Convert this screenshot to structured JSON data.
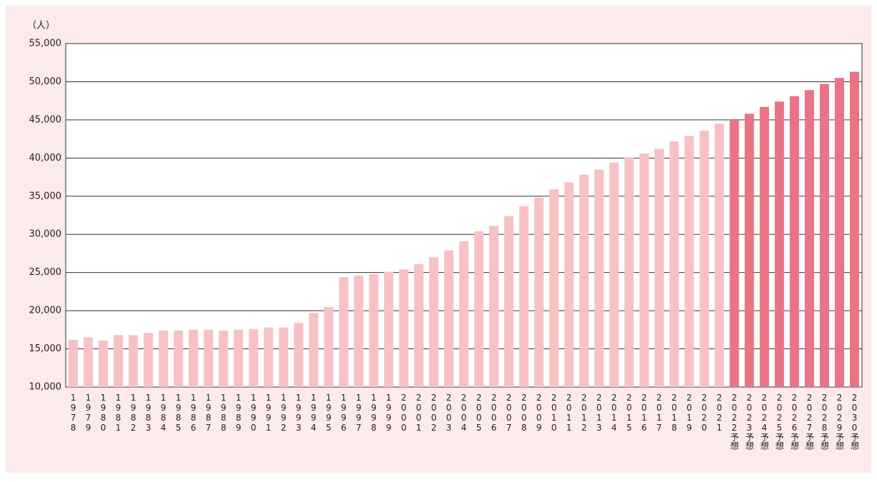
{
  "chart_data": {
    "type": "bar",
    "y_unit": "（人）",
    "categories": [
      "1978",
      "1979",
      "1980",
      "1981",
      "1982",
      "1983",
      "1984",
      "1985",
      "1986",
      "1987",
      "1988",
      "1989",
      "1990",
      "1991",
      "1992",
      "1993",
      "1994",
      "1995",
      "1996",
      "1997",
      "1998",
      "1999",
      "2000",
      "2001",
      "2002",
      "2003",
      "2004",
      "2005",
      "2006",
      "2007",
      "2008",
      "2009",
      "2010",
      "2011",
      "2012",
      "2013",
      "2014",
      "2015",
      "2016",
      "2017",
      "2018",
      "2019",
      "2020",
      "2021",
      "2022予想",
      "2023予想",
      "2024予想",
      "2025予想",
      "2026予想",
      "2027予想",
      "2028予想",
      "2029予想",
      "2030予想"
    ],
    "values": [
      16200,
      16500,
      16100,
      16800,
      16800,
      17100,
      17400,
      17400,
      17500,
      17500,
      17400,
      17500,
      17600,
      17800,
      17800,
      18400,
      19700,
      20500,
      24400,
      24600,
      24800,
      25100,
      25400,
      26100,
      27000,
      27900,
      29100,
      30400,
      31100,
      32400,
      33700,
      34800,
      35900,
      36800,
      37800,
      38500,
      39400,
      40100,
      40600,
      41200,
      42200,
      42900,
      43600,
      44500,
      45100,
      45800,
      46700,
      47400,
      48100,
      48900,
      49700,
      50500,
      51300
    ],
    "bar_colors": [
      "#f7c1c6",
      "#f7c1c6",
      "#f7c1c6",
      "#f7c1c6",
      "#f7c1c6",
      "#f7c1c6",
      "#f7c1c6",
      "#f7c1c6",
      "#f7c1c6",
      "#f7c1c6",
      "#f7c1c6",
      "#f7c1c6",
      "#f7c1c6",
      "#f7c1c6",
      "#f7c1c6",
      "#f7c1c6",
      "#f7c1c6",
      "#f7c1c6",
      "#f7c1c6",
      "#f7c1c6",
      "#f7c1c6",
      "#f7c1c6",
      "#f7c1c6",
      "#f7c1c6",
      "#f7c1c6",
      "#f7c1c6",
      "#f7c1c6",
      "#f7c1c6",
      "#f7c1c6",
      "#f7c1c6",
      "#f7c1c6",
      "#f7c1c6",
      "#f7c1c6",
      "#f7c1c6",
      "#f7c1c6",
      "#f7c1c6",
      "#f7c1c6",
      "#f7c1c6",
      "#f7c1c6",
      "#f7c1c6",
      "#f7c1c6",
      "#f7c1c6",
      "#f7c1c6",
      "#f7c1c6",
      "#e97485",
      "#e97485",
      "#e97485",
      "#e97485",
      "#e97485",
      "#e97485",
      "#e97485",
      "#e97485",
      "#e97485"
    ],
    "ylim": [
      10000,
      55000
    ],
    "yticks": [
      {
        "value": 10000,
        "label": "10,000"
      },
      {
        "value": 15000,
        "label": "15,000"
      },
      {
        "value": 20000,
        "label": "20,000"
      },
      {
        "value": 25000,
        "label": "25,000"
      },
      {
        "value": 30000,
        "label": "30,000"
      },
      {
        "value": 35000,
        "label": "35,000"
      },
      {
        "value": 40000,
        "label": "40,000"
      },
      {
        "value": 45000,
        "label": "45,000"
      },
      {
        "value": 50000,
        "label": "50,000"
      },
      {
        "value": 55000,
        "label": "55,000"
      }
    ],
    "grid": true
  }
}
